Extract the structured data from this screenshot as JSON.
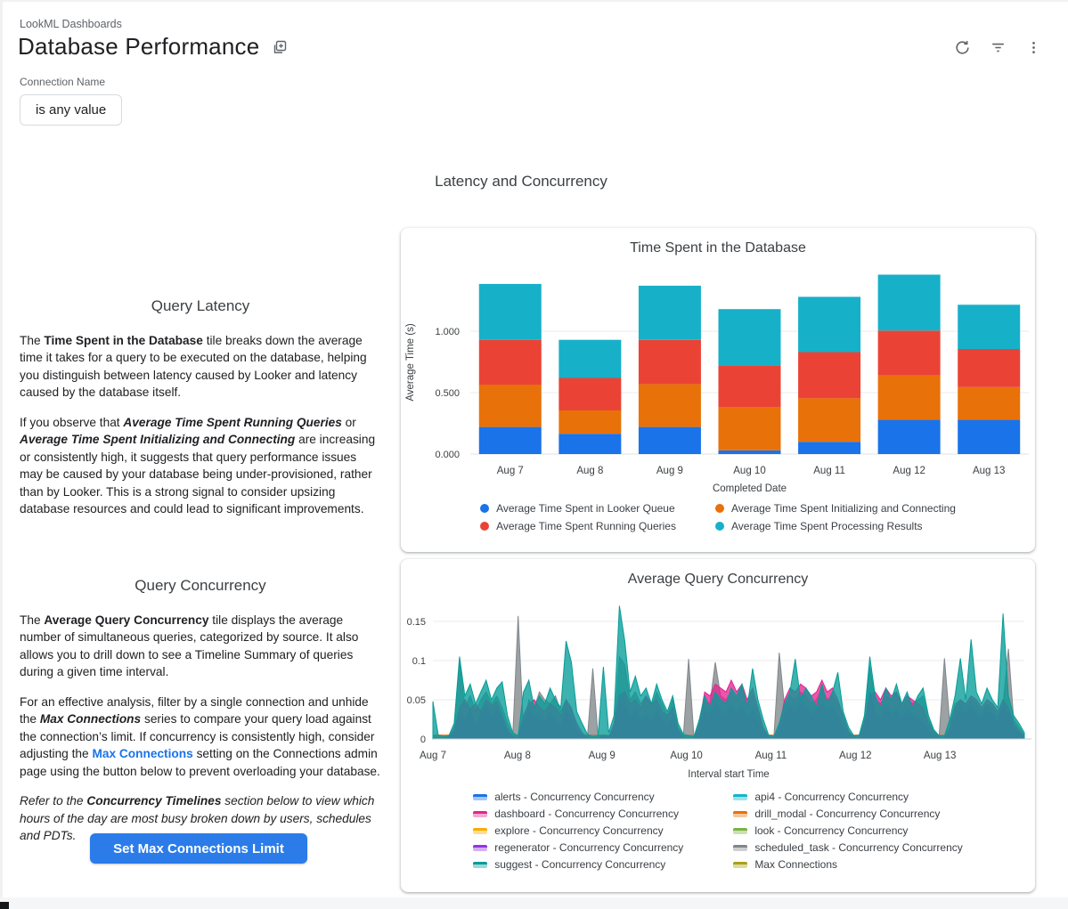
{
  "header": {
    "breadcrumb": "LookML Dashboards",
    "title": "Database Performance",
    "icons": [
      "dashboard-copy-icon",
      "refresh-icon",
      "filter-icon",
      "more-vert-icon"
    ]
  },
  "filter": {
    "label": "Connection Name",
    "value": "is any value"
  },
  "section_title": "Latency and Concurrency",
  "query_latency": {
    "heading": "Query Latency",
    "paragraphs": [
      [
        {
          "t": "The "
        },
        {
          "t": "Time Spent in the Database",
          "s": "b"
        },
        {
          "t": " tile breaks down the average time it takes for a query to be executed on the database, helping you distinguish between latency caused by Looker and latency caused by the database itself."
        }
      ],
      [
        {
          "t": "If you observe that "
        },
        {
          "t": "Average Time Spent Running Queries",
          "s": "bi"
        },
        {
          "t": " or "
        },
        {
          "t": "Average Time Spent Initializing and Connecting",
          "s": "bi"
        },
        {
          "t": " are increasing or consistently high, it suggests that query performance issues may be caused by your database being under-provisioned, rather than by Looker. This is a strong signal to consider upsizing database resources and could lead to significant improvements."
        }
      ]
    ]
  },
  "query_concurrency": {
    "heading": "Query Concurrency",
    "paragraphs": [
      [
        {
          "t": "The "
        },
        {
          "t": "Average Query Concurrency",
          "s": "b"
        },
        {
          "t": " tile displays the average number of simultaneous queries, categorized by source. It also allows you to drill down to see a Timeline Summary of queries during a given time interval."
        }
      ],
      [
        {
          "t": "For an effective analysis, filter by a single connection and unhide the "
        },
        {
          "t": "Max Connections",
          "s": "bi"
        },
        {
          "t": " series to compare your query load against the connection’s limit. If concurrency is consistently high, consider adjusting the "
        },
        {
          "t": "Max Connections",
          "s": "link"
        },
        {
          "t": " setting on the Connections admin page using the button below to prevent overloading your database."
        }
      ],
      [
        {
          "t": "Refer to the ",
          "s": "i"
        },
        {
          "t": "Concurrency Timelines",
          "s": "bi"
        },
        {
          "t": " section below to view which hours of the day are most busy broken down by users, schedules and PDTs.",
          "s": "i"
        }
      ]
    ],
    "button_label": "Set Max Connections Limit"
  },
  "chart_data": [
    {
      "type": "bar",
      "stacked": true,
      "title": "Time Spent in the Database",
      "xlabel": "Completed Date",
      "ylabel": "Average Time (s)",
      "ylim": [
        0,
        1.5
      ],
      "yticks": [
        0,
        0.5,
        1
      ],
      "categories": [
        "Aug 7",
        "Aug 8",
        "Aug 9",
        "Aug 10",
        "Aug 11",
        "Aug 12",
        "Aug 13"
      ],
      "series": [
        {
          "name": "Average Time Spent in Looker Queue",
          "color": "#1A73E8",
          "values": [
            0.22,
            0.165,
            0.22,
            0.03,
            0.1,
            0.28,
            0.28
          ]
        },
        {
          "name": "Average Time Spent Initializing and Connecting",
          "color": "#E8710A",
          "values": [
            0.345,
            0.19,
            0.35,
            0.35,
            0.355,
            0.36,
            0.265
          ]
        },
        {
          "name": "Average Time Spent Running Queries",
          "color": "#EA4335",
          "values": [
            0.365,
            0.265,
            0.36,
            0.34,
            0.375,
            0.365,
            0.31
          ]
        },
        {
          "name": "Average Time Spent Processing Results",
          "color": "#17B0C9",
          "values": [
            0.455,
            0.31,
            0.44,
            0.46,
            0.45,
            0.455,
            0.36
          ]
        }
      ]
    },
    {
      "type": "area",
      "title": "Average Query Concurrency",
      "xlabel": "Interval start Time",
      "x_labels": [
        "Aug 7",
        "Aug 8",
        "Aug 9",
        "Aug 10",
        "Aug 11",
        "Aug 12",
        "Aug 13"
      ],
      "points_per_day": 16,
      "ylim": [
        0,
        0.175
      ],
      "yticks": [
        0,
        0.05,
        0.1,
        0.15
      ],
      "legend": [
        "alerts - Concurrency Concurrency",
        "api4 - Concurrency Concurrency",
        "dashboard - Concurrency Concurrency",
        "drill_modal - Concurrency Concurrency",
        "explore - Concurrency Concurrency",
        "look - Concurrency Concurrency",
        "regenerator - Concurrency Concurrency",
        "scheduled_task - Concurrency Concurrency",
        "suggest - Concurrency Concurrency",
        "Max Connections"
      ],
      "series": [
        {
          "name": "alerts - Concurrency Concurrency",
          "color": "#1A73E8",
          "flat": 0.002
        },
        {
          "name": "explore - Concurrency Concurrency",
          "color": "#F9AB00",
          "flat": 0.004
        },
        {
          "name": "look - Concurrency Concurrency",
          "color": "#7CB342",
          "flat": 0.003
        },
        {
          "name": "drill_modal - Concurrency Concurrency",
          "color": "#E8710A",
          "flat": 0.005
        },
        {
          "name": "scheduled_task - Concurrency Concurrency",
          "color": "#80868B",
          "values": [
            0.003,
            0.002,
            0.002,
            0.003,
            0.015,
            0.1,
            0.04,
            0.055,
            0.035,
            0.05,
            0.06,
            0.045,
            0.055,
            0.04,
            0.02,
            0.005,
            0.157,
            0.01,
            0.05,
            0.04,
            0.06,
            0.05,
            0.045,
            0.055,
            0.035,
            0.05,
            0.04,
            0.015,
            0.006,
            0.002,
            0.09,
            0.003,
            0.004,
            0.003,
            0.015,
            0.105,
            0.095,
            0.05,
            0.06,
            0.045,
            0.055,
            0.04,
            0.06,
            0.045,
            0.03,
            0.05,
            0.015,
            0.004,
            0.102,
            0.002,
            0.015,
            0.05,
            0.045,
            0.098,
            0.055,
            0.05,
            0.06,
            0.05,
            0.065,
            0.045,
            0.055,
            0.035,
            0.012,
            0.003,
            0.002,
            0.11,
            0.04,
            0.055,
            0.05,
            0.06,
            0.055,
            0.045,
            0.05,
            0.065,
            0.05,
            0.055,
            0.045,
            0.025,
            0.008,
            0.002,
            0.003,
            0.025,
            0.092,
            0.05,
            0.045,
            0.055,
            0.05,
            0.06,
            0.04,
            0.05,
            0.045,
            0.05,
            0.055,
            0.025,
            0.01,
            0.003,
            0.103,
            0.02,
            0.045,
            0.05,
            0.04,
            0.05,
            0.045,
            0.035,
            0.045,
            0.04,
            0.03,
            0.045,
            0.115,
            0.025,
            0.015,
            0.005
          ]
        },
        {
          "name": "api4 - Concurrency Concurrency",
          "color": "#12B5CB",
          "values": [
            0.002,
            0.001,
            0.001,
            0.002,
            0.01,
            0.035,
            0.025,
            0.04,
            0.02,
            0.035,
            0.045,
            0.03,
            0.04,
            0.025,
            0.01,
            0.003,
            0.001,
            0.025,
            0.04,
            0.035,
            0.03,
            0.025,
            0.035,
            0.03,
            0.02,
            0.04,
            0.03,
            0.012,
            0.005,
            0.002,
            0.001,
            0.001,
            0.003,
            0.002,
            0.012,
            0.06,
            0.05,
            0.03,
            0.04,
            0.025,
            0.035,
            0.025,
            0.04,
            0.03,
            0.02,
            0.03,
            0.01,
            0.002,
            0.001,
            0.001,
            0.012,
            0.04,
            0.035,
            0.055,
            0.04,
            0.035,
            0.045,
            0.035,
            0.045,
            0.03,
            0.04,
            0.025,
            0.01,
            0.002,
            0.001,
            0.01,
            0.035,
            0.045,
            0.04,
            0.05,
            0.045,
            0.035,
            0.04,
            0.05,
            0.04,
            0.045,
            0.035,
            0.018,
            0.006,
            0.001,
            0.002,
            0.012,
            0.065,
            0.035,
            0.03,
            0.045,
            0.035,
            0.04,
            0.03,
            0.04,
            0.035,
            0.03,
            0.025,
            0.012,
            0.005,
            0.001,
            0.001,
            0.01,
            0.03,
            0.04,
            0.035,
            0.045,
            0.035,
            0.03,
            0.04,
            0.035,
            0.025,
            0.045,
            0.035,
            0.015,
            0.008,
            0.002
          ]
        },
        {
          "name": "regenerator - Concurrency Concurrency",
          "color": "#9334E6",
          "values": [
            0.001,
            0.001,
            0.001,
            0.002,
            0.008,
            0.03,
            0.02,
            0.035,
            0.015,
            0.03,
            0.04,
            0.025,
            0.035,
            0.02,
            0.008,
            0.002,
            0.001,
            0.02,
            0.035,
            0.03,
            0.025,
            0.02,
            0.03,
            0.025,
            0.015,
            0.035,
            0.025,
            0.01,
            0.004,
            0.001,
            0.001,
            0.001,
            0.002,
            0.001,
            0.01,
            0.045,
            0.04,
            0.025,
            0.035,
            0.02,
            0.03,
            0.02,
            0.035,
            0.025,
            0.015,
            0.025,
            0.008,
            0.001,
            0.001,
            0.001,
            0.01,
            0.035,
            0.03,
            0.045,
            0.035,
            0.03,
            0.04,
            0.03,
            0.04,
            0.025,
            0.035,
            0.02,
            0.008,
            0.001,
            0.001,
            0.008,
            0.03,
            0.04,
            0.035,
            0.045,
            0.04,
            0.03,
            0.035,
            0.045,
            0.035,
            0.04,
            0.03,
            0.015,
            0.005,
            0.001,
            0.001,
            0.01,
            0.06,
            0.03,
            0.025,
            0.04,
            0.03,
            0.035,
            0.025,
            0.035,
            0.03,
            0.025,
            0.02,
            0.01,
            0.004,
            0.001,
            0.001,
            0.008,
            0.025,
            0.035,
            0.03,
            0.04,
            0.03,
            0.025,
            0.035,
            0.03,
            0.02,
            0.04,
            0.03,
            0.012,
            0.006,
            0.002
          ]
        },
        {
          "name": "dashboard - Concurrency Concurrency",
          "color": "#E52592",
          "values": [
            0.002,
            0.001,
            0.001,
            0.002,
            0.01,
            0.04,
            0.05,
            0.038,
            0.045,
            0.035,
            0.05,
            0.042,
            0.048,
            0.03,
            0.012,
            0.003,
            0.001,
            0.03,
            0.045,
            0.05,
            0.04,
            0.035,
            0.045,
            0.04,
            0.03,
            0.05,
            0.038,
            0.02,
            0.008,
            0.002,
            0.001,
            0.001,
            0.005,
            0.002,
            0.02,
            0.055,
            0.06,
            0.045,
            0.05,
            0.04,
            0.055,
            0.045,
            0.05,
            0.035,
            0.03,
            0.04,
            0.012,
            0.002,
            0.001,
            0.001,
            0.02,
            0.06,
            0.055,
            0.07,
            0.065,
            0.06,
            0.075,
            0.06,
            0.07,
            0.05,
            0.065,
            0.04,
            0.015,
            0.003,
            0.001,
            0.015,
            0.05,
            0.065,
            0.06,
            0.07,
            0.065,
            0.055,
            0.06,
            0.075,
            0.06,
            0.065,
            0.05,
            0.03,
            0.01,
            0.002,
            0.002,
            0.02,
            0.055,
            0.06,
            0.05,
            0.065,
            0.055,
            0.06,
            0.045,
            0.055,
            0.05,
            0.045,
            0.04,
            0.02,
            0.008,
            0.002,
            0.001,
            0.015,
            0.04,
            0.05,
            0.045,
            0.055,
            0.05,
            0.04,
            0.05,
            0.045,
            0.035,
            0.05,
            0.04,
            0.02,
            0.01,
            0.003
          ]
        },
        {
          "name": "suggest - Concurrency Concurrency",
          "color": "#079C98",
          "values": [
            0.048,
            0.005,
            0.003,
            0.004,
            0.02,
            0.105,
            0.055,
            0.07,
            0.045,
            0.06,
            0.075,
            0.05,
            0.065,
            0.073,
            0.03,
            0.008,
            0.004,
            0.06,
            0.075,
            0.04,
            0.055,
            0.045,
            0.065,
            0.05,
            0.04,
            0.125,
            0.098,
            0.035,
            0.02,
            0.006,
            0.003,
            0.004,
            0.092,
            0.008,
            0.03,
            0.17,
            0.125,
            0.06,
            0.08,
            0.055,
            0.065,
            0.045,
            0.07,
            0.05,
            0.035,
            0.055,
            0.02,
            0.006,
            0.004,
            0.003,
            0.025,
            0.055,
            0.04,
            0.06,
            0.05,
            0.045,
            0.065,
            0.055,
            0.07,
            0.04,
            0.09,
            0.05,
            0.025,
            0.005,
            0.003,
            0.02,
            0.045,
            0.06,
            0.102,
            0.05,
            0.065,
            0.055,
            0.04,
            0.07,
            0.045,
            0.06,
            0.085,
            0.035,
            0.015,
            0.004,
            0.005,
            0.03,
            0.105,
            0.055,
            0.04,
            0.065,
            0.05,
            0.07,
            0.045,
            0.06,
            0.04,
            0.055,
            0.065,
            0.03,
            0.012,
            0.004,
            0.004,
            0.025,
            0.055,
            0.103,
            0.05,
            0.127,
            0.06,
            0.045,
            0.065,
            0.05,
            0.04,
            0.16,
            0.055,
            0.03,
            0.02,
            0.008
          ]
        },
        {
          "name": "Max Connections",
          "color": "#A8A116",
          "hidden": true
        }
      ]
    }
  ]
}
